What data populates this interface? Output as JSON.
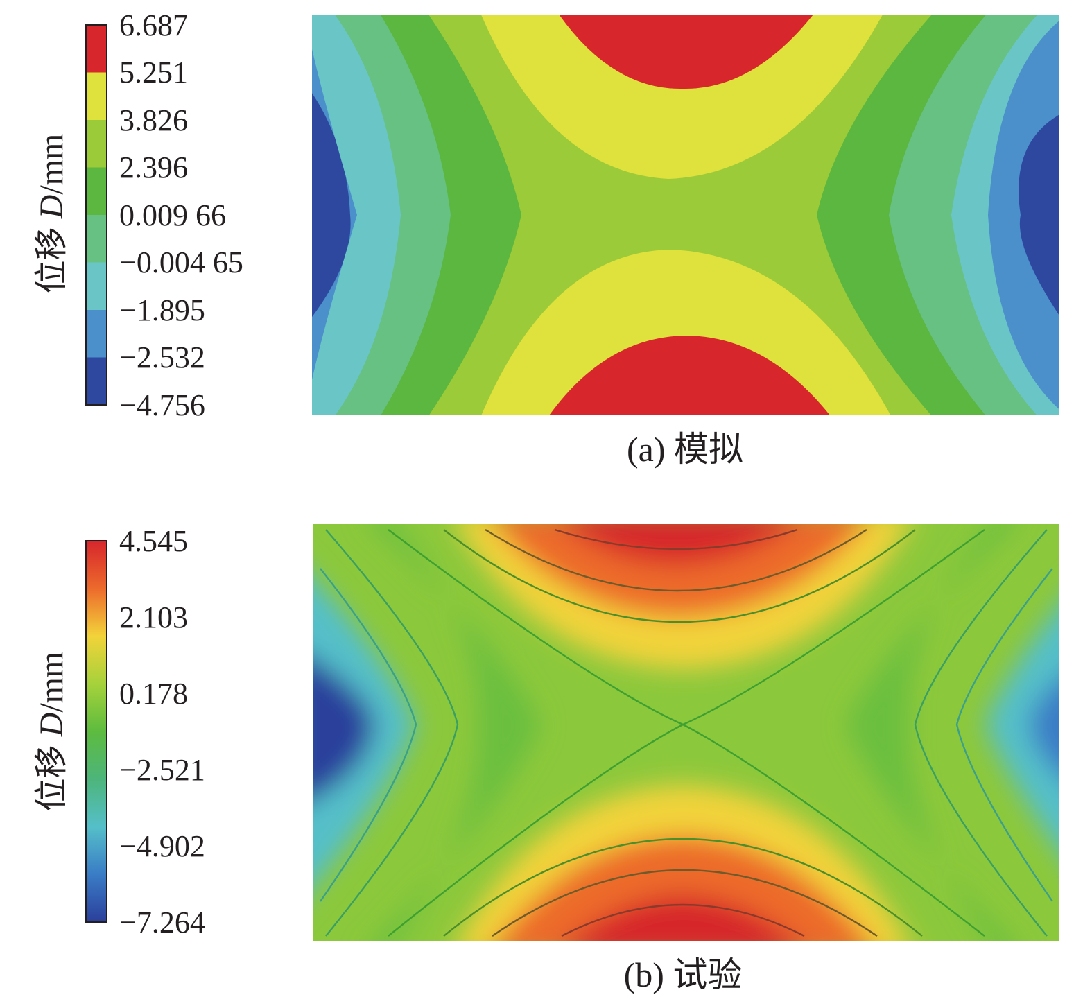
{
  "figures": [
    {
      "id": "a",
      "caption": "(a) 模拟",
      "colorbar": {
        "title_prefix": "位移 ",
        "title_symbol": "D",
        "title_unit": "/mm",
        "ticks": [
          "6.687",
          "5.251",
          "3.826",
          "2.396",
          "0.009 66",
          "−0.004 65",
          "−1.895",
          "−2.532",
          "−4.756"
        ],
        "band_colors": [
          "#d7262c",
          "#dfe13d",
          "#9ccb3a",
          "#5bb73f",
          "#67c182",
          "#6ac6c6",
          "#4b8fcb",
          "#2e48a0"
        ],
        "style": "discrete"
      }
    },
    {
      "id": "b",
      "caption": "(b) 试验",
      "colorbar": {
        "title_prefix": "位移 ",
        "title_symbol": "D",
        "title_unit": "/mm",
        "ticks": [
          "4.545",
          "2.103",
          "0.178",
          "−2.521",
          "−4.902",
          "−7.264"
        ],
        "gradient_colors": [
          "#d7262c",
          "#ec6a2c",
          "#f2d33a",
          "#a6d23b",
          "#5dbb3f",
          "#4db57a",
          "#55bfc9",
          "#3a7cc6",
          "#2b3f9b"
        ],
        "style": "continuous"
      }
    }
  ],
  "chart_data": [
    {
      "type": "heatmap",
      "title": "(a) 模拟",
      "colorbar_label": "位移 D/mm",
      "colorbar_ticks": [
        6.687,
        5.251,
        3.826,
        2.396,
        0.00966,
        -0.00465,
        -1.895,
        -2.532,
        -4.756
      ],
      "value_range": [
        -4.756,
        6.687
      ],
      "pattern": "saddle: maxima at top/bottom center, minima at left/right edges"
    },
    {
      "type": "heatmap",
      "title": "(b) 试验",
      "colorbar_label": "位移 D/mm",
      "colorbar_ticks": [
        4.545,
        2.103,
        0.178,
        -2.521,
        -4.902,
        -7.264
      ],
      "value_range": [
        -7.264,
        4.545
      ],
      "pattern": "saddle: maxima at top/bottom center, minima at left/right edges"
    }
  ]
}
